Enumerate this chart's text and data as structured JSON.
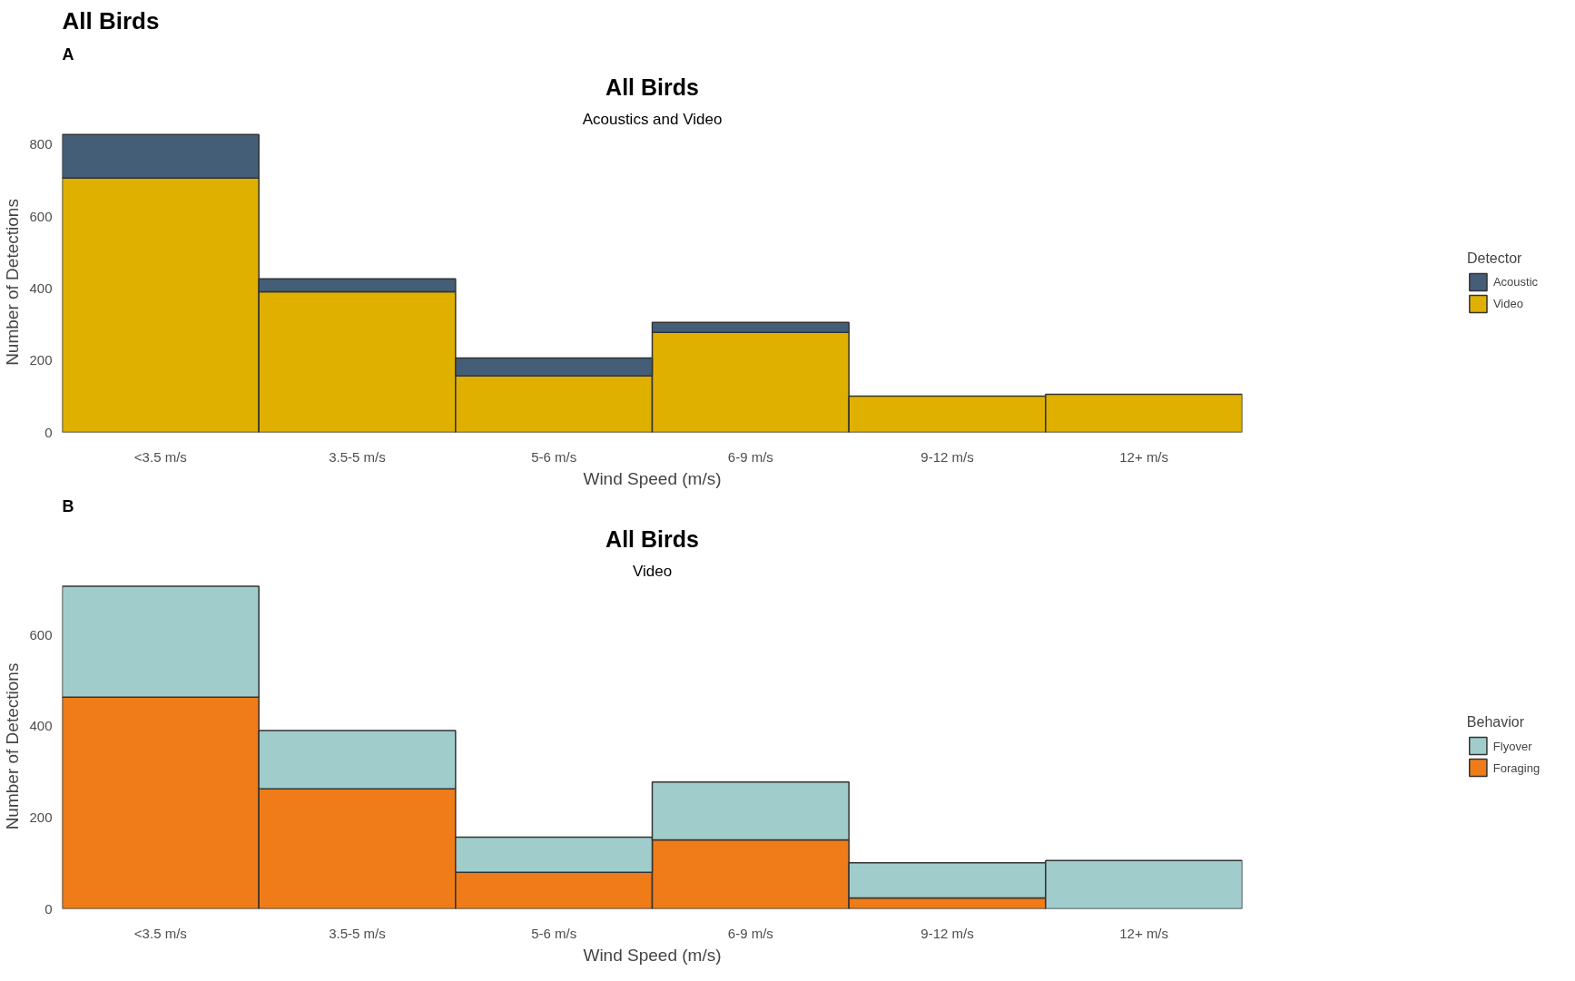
{
  "chart_data": [
    {
      "type": "bar",
      "stacked": true,
      "title": "All Birds",
      "subtitle": "Acoustics and Video",
      "xlabel": "Wind Speed (m/s)",
      "ylabel": "Number of Detections",
      "legend_title": "Detector",
      "legend": "right",
      "grid": false,
      "annotations": [
        "All Birds",
        "A"
      ],
      "categories": [
        "<3.5 m/s",
        "3.5-5 m/s",
        "5-6 m/s",
        "6-9 m/s",
        "9-12 m/s",
        "12+ m/s"
      ],
      "series": [
        {
          "name": "Video",
          "color": "#e0b000",
          "values": [
            707,
            391,
            157,
            278,
            101,
            106
          ]
        },
        {
          "name": "Acoustic",
          "color": "#445e78",
          "values": [
            121,
            36,
            50,
            28,
            0,
            0
          ]
        }
      ],
      "ylim": [
        0,
        835
      ],
      "yticks": [
        0,
        200,
        400,
        600,
        800
      ]
    },
    {
      "type": "bar",
      "stacked": true,
      "title": "All Birds",
      "subtitle": "Video",
      "xlabel": "Wind Speed (m/s)",
      "ylabel": "Number of Detections",
      "legend_title": "Behavior",
      "legend": "right",
      "grid": false,
      "annotations": [
        "B"
      ],
      "categories": [
        "<3.5 m/s",
        "3.5-5 m/s",
        "5-6 m/s",
        "6-9 m/s",
        "9-12 m/s",
        "12+ m/s"
      ],
      "series": [
        {
          "name": "Foraging",
          "color": "#ef7c18",
          "values": [
            464,
            263,
            80,
            151,
            24,
            0
          ]
        },
        {
          "name": "Flyover",
          "color": "#a1cccc",
          "values": [
            243,
            128,
            77,
            127,
            77,
            106
          ]
        }
      ],
      "ylim": [
        0,
        712
      ],
      "yticks": [
        0,
        200,
        400,
        600
      ]
    }
  ]
}
